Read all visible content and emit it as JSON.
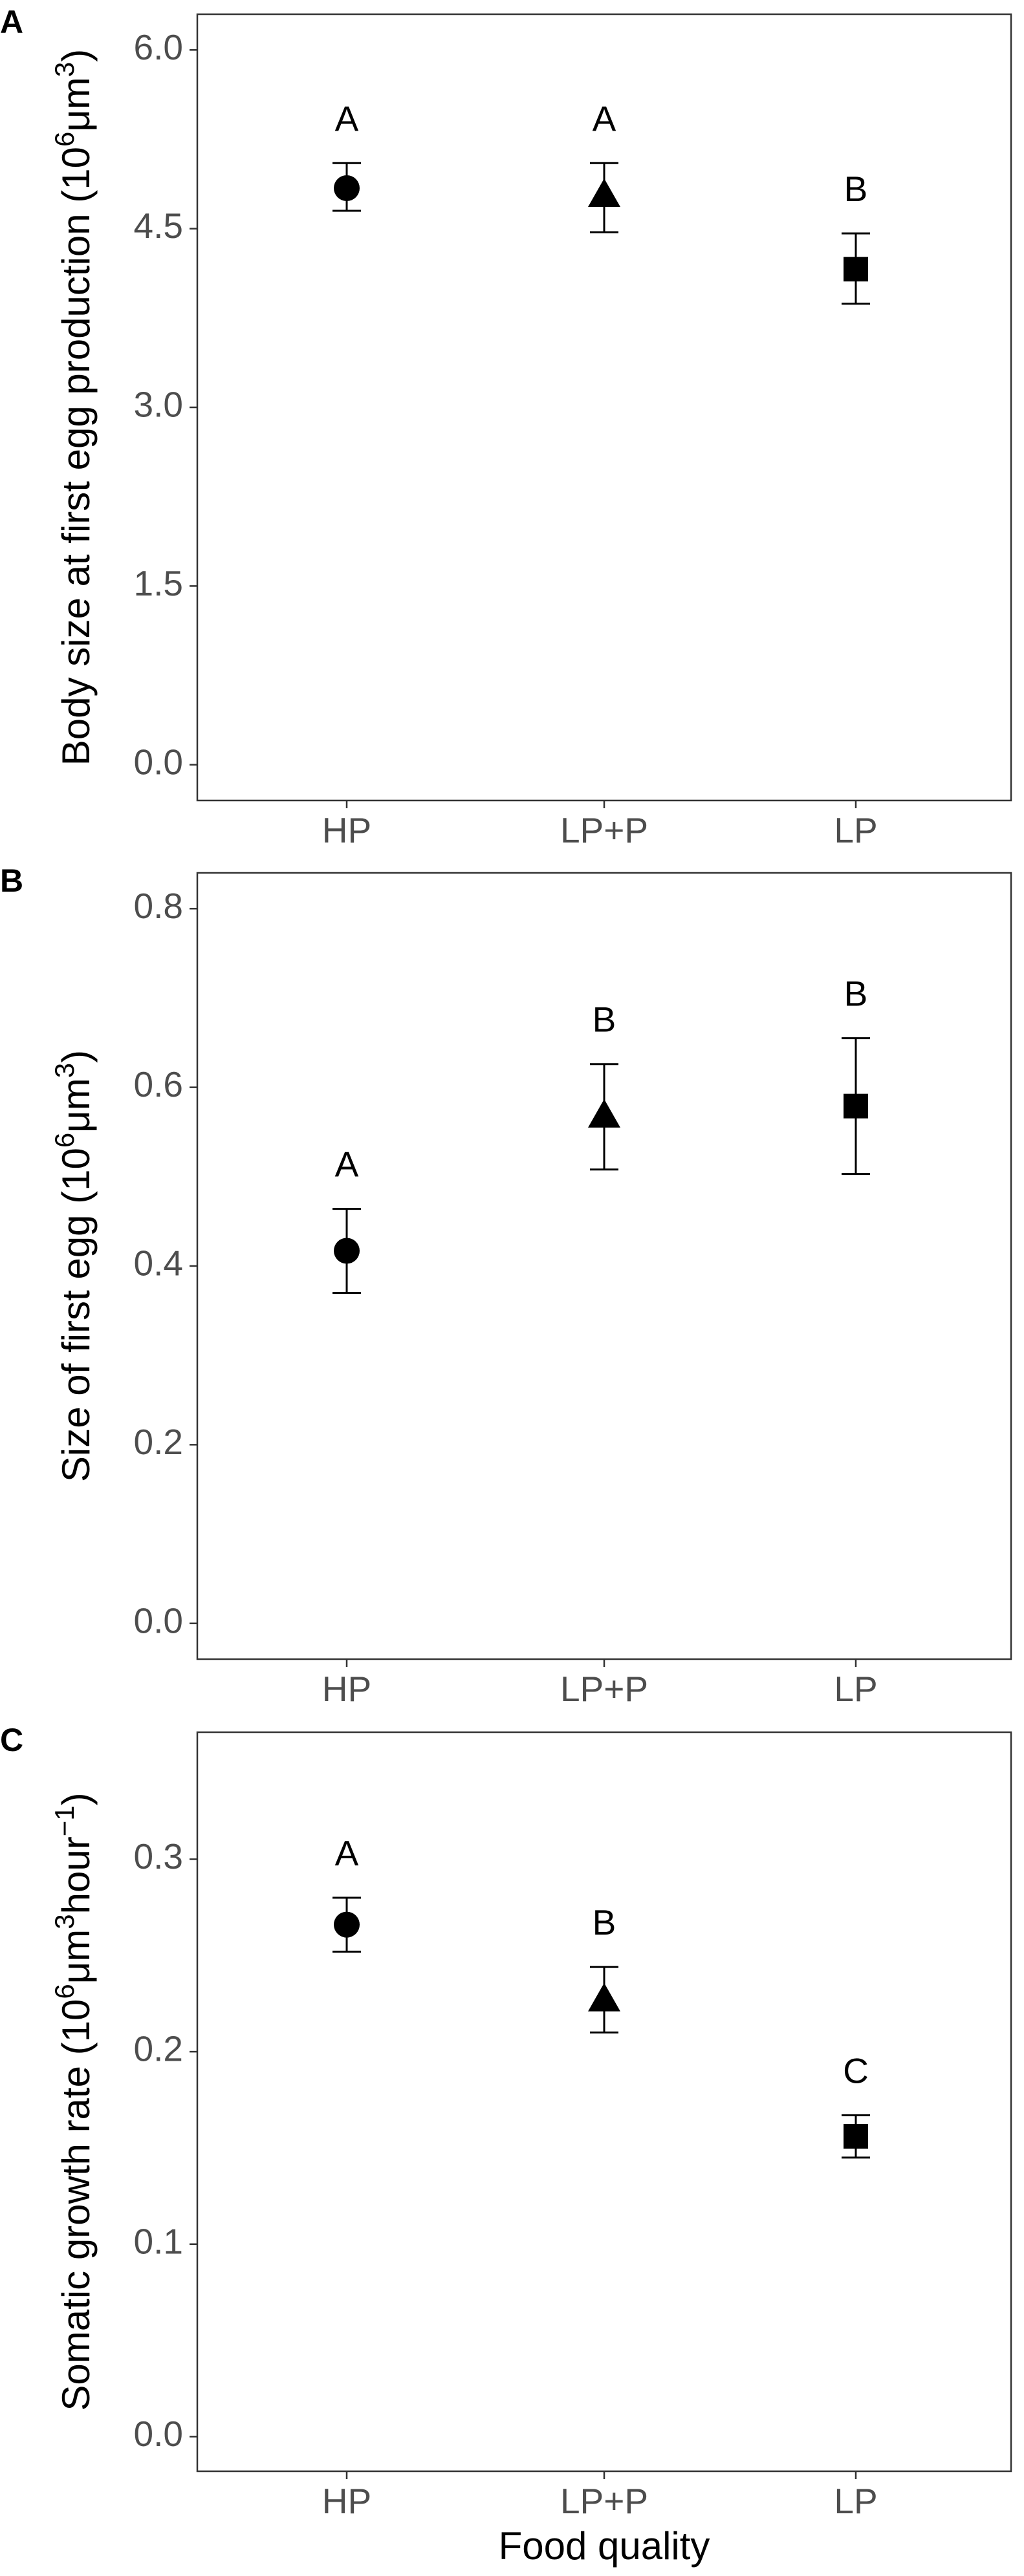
{
  "figure": {
    "xlabel": "Food quality"
  },
  "chart_data": [
    {
      "type": "scatter",
      "panel": "A",
      "ylabel_main": "Body size at first egg production (10",
      "ylabel_sup1": "6",
      "ylabel_mid": "μm",
      "ylabel_sup2": "3",
      "ylabel_end": ")",
      "ylim": [
        -0.3,
        6.3
      ],
      "yticks": [
        "0.0",
        "1.5",
        "3.0",
        "4.5",
        "6.0"
      ],
      "ytick_values": [
        0,
        1.5,
        3,
        4.5,
        6
      ],
      "categories": [
        "HP",
        "LP+P",
        "LP"
      ],
      "markers": [
        "circle",
        "triangle",
        "square"
      ],
      "points": [
        {
          "category": "HP",
          "mean": 4.84,
          "lower": 4.65,
          "upper": 5.05,
          "group": "A"
        },
        {
          "category": "LP+P",
          "mean": 4.78,
          "lower": 4.47,
          "upper": 5.05,
          "group": "A"
        },
        {
          "category": "LP",
          "mean": 4.16,
          "lower": 3.87,
          "upper": 4.46,
          "group": "B"
        }
      ],
      "grid": false
    },
    {
      "type": "scatter",
      "panel": "B",
      "ylabel_main": "Size of first egg (10",
      "ylabel_sup1": "6",
      "ylabel_mid": "μm",
      "ylabel_sup2": "3",
      "ylabel_end": ")",
      "ylim": [
        -0.04,
        0.84
      ],
      "yticks": [
        "0.0",
        "0.2",
        "0.4",
        "0.6",
        "0.8"
      ],
      "ytick_values": [
        0,
        0.2,
        0.4,
        0.6,
        0.8
      ],
      "categories": [
        "HP",
        "LP+P",
        "LP"
      ],
      "markers": [
        "circle",
        "triangle",
        "square"
      ],
      "points": [
        {
          "category": "HP",
          "mean": 0.417,
          "lower": 0.37,
          "upper": 0.464,
          "group": "A"
        },
        {
          "category": "LP+P",
          "mean": 0.568,
          "lower": 0.508,
          "upper": 0.626,
          "group": "B"
        },
        {
          "category": "LP",
          "mean": 0.579,
          "lower": 0.503,
          "upper": 0.655,
          "group": "B"
        }
      ],
      "grid": false
    },
    {
      "type": "scatter",
      "panel": "C",
      "ylabel_main": "Somatic growth rate (10",
      "ylabel_sup1": "6",
      "ylabel_mid": "μm",
      "ylabel_sup2": "3",
      "ylabel_mid2": "hour",
      "ylabel_sup3": "−1",
      "ylabel_end": ")",
      "ylim": [
        -0.018,
        0.366
      ],
      "yticks": [
        "0.0",
        "0.1",
        "0.2",
        "0.3"
      ],
      "ytick_values": [
        0,
        0.1,
        0.2,
        0.3
      ],
      "categories": [
        "HP",
        "LP+P",
        "LP"
      ],
      "markers": [
        "circle",
        "triangle",
        "square"
      ],
      "points": [
        {
          "category": "HP",
          "mean": 0.266,
          "lower": 0.252,
          "upper": 0.28,
          "group": "A"
        },
        {
          "category": "LP+P",
          "mean": 0.227,
          "lower": 0.21,
          "upper": 0.244,
          "group": "B"
        },
        {
          "category": "LP",
          "mean": 0.156,
          "lower": 0.145,
          "upper": 0.167,
          "group": "C"
        }
      ],
      "grid": false
    }
  ]
}
